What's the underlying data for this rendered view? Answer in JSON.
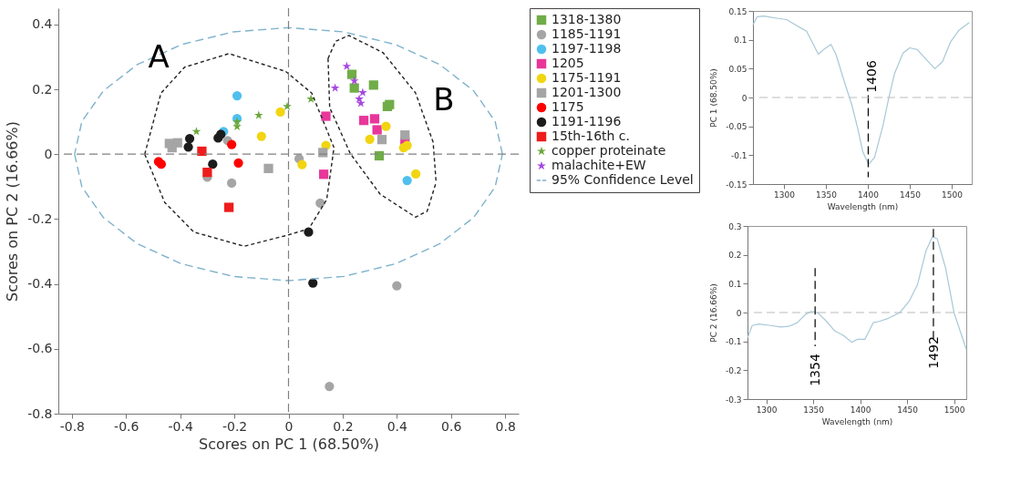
{
  "chart_data": [
    {
      "type": "scatter",
      "xlabel": "Scores on PC 1 (68.50%)",
      "ylabel": "Scores on PC 2 (16.66%)",
      "xlim": [
        -0.85,
        0.85
      ],
      "xticks": [
        -0.8,
        -0.6,
        -0.4,
        -0.2,
        0,
        0.2,
        0.4,
        0.6,
        0.8
      ],
      "ylim": [
        -0.8,
        0.45
      ],
      "yticks": [
        -0.8,
        -0.6,
        -0.4,
        -0.2,
        0,
        0.2,
        0.4
      ],
      "grid": false,
      "legend": "right",
      "series": [
        {
          "name": "1318-1380",
          "color": "#70ad47",
          "marker": "square",
          "x": [
            0.234,
            0.243,
            0.314,
            0.365,
            0.373,
            0.335
          ],
          "values": [
            0.246,
            0.204,
            0.213,
            0.147,
            0.153,
            -0.005
          ]
        },
        {
          "name": "1185-1191",
          "color": "#a5a5a5",
          "marker": "circle",
          "x": [
            -0.3,
            -0.21,
            -0.225,
            0.039,
            0.117,
            0.4,
            0.151
          ],
          "values": [
            -0.071,
            -0.089,
            0.042,
            -0.014,
            -0.151,
            -0.406,
            -0.716
          ]
        },
        {
          "name": "1197-1198",
          "color": "#4fc0ee",
          "marker": "circle",
          "x": [
            -0.19,
            -0.19,
            -0.24,
            0.438
          ],
          "values": [
            0.18,
            0.11,
            0.07,
            -0.081
          ]
        },
        {
          "name": "1205",
          "color": "#e8369a",
          "marker": "square",
          "x": [
            0.138,
            0.13,
            0.278,
            0.318,
            0.327,
            0.43
          ],
          "values": [
            0.117,
            -0.062,
            0.104,
            0.109,
            0.075,
            0.037
          ]
        },
        {
          "name": "1175-1191",
          "color": "#f2d511",
          "marker": "circle",
          "x": [
            -0.03,
            -0.1,
            0.138,
            0.05,
            0.36,
            0.3,
            0.425,
            0.438,
            0.47
          ],
          "values": [
            0.13,
            0.055,
            0.027,
            -0.032,
            0.086,
            0.046,
            0.02,
            0.027,
            -0.061
          ]
        },
        {
          "name": "1201-1300",
          "color": "#a5a5a5",
          "marker": "square",
          "x": [
            -0.44,
            -0.41,
            -0.43,
            -0.074,
            0.127,
            0.345,
            0.43
          ],
          "values": [
            0.033,
            0.035,
            0.02,
            -0.044,
            0.005,
            0.045,
            0.059
          ]
        },
        {
          "name": "1175",
          "color": "#ff0000",
          "marker": "circle",
          "x": [
            -0.48,
            -0.47,
            -0.21,
            -0.185
          ],
          "values": [
            -0.023,
            -0.031,
            0.03,
            -0.027
          ]
        },
        {
          "name": "1191-1196",
          "color": "#1c1c1c",
          "marker": "circle",
          "x": [
            -0.365,
            -0.37,
            -0.26,
            -0.25,
            -0.28,
            0.074,
            0.09
          ],
          "values": [
            0.048,
            0.022,
            0.05,
            0.061,
            -0.031,
            -0.24,
            -0.397
          ]
        },
        {
          "name": "15th-16th c.",
          "color": "#ee1c1c",
          "marker": "square",
          "x": [
            -0.32,
            -0.3,
            -0.22
          ],
          "values": [
            0.009,
            -0.056,
            -0.164
          ]
        },
        {
          "name": "copper proteinate",
          "color": "#6aa83c",
          "marker": "star",
          "x": [
            -0.34,
            -0.19,
            -0.19,
            -0.11,
            -0.005,
            0.083
          ],
          "values": [
            0.07,
            0.1,
            0.085,
            0.12,
            0.147,
            0.17
          ]
        },
        {
          "name": "malachite+EW",
          "color": "#a648e0",
          "marker": "star",
          "x": [
            0.215,
            0.243,
            0.172,
            0.274,
            0.261,
            0.267
          ],
          "values": [
            0.271,
            0.226,
            0.204,
            0.19,
            0.17,
            0.157
          ]
        },
        {
          "name": "95% Confidence Level",
          "type": "line",
          "color": "#7fb2cc",
          "line_style": "dashed",
          "x": [
            0.79,
            0.763,
            0.684,
            0.559,
            0.395,
            0.204,
            0,
            -0.204,
            -0.395,
            -0.559,
            -0.684,
            -0.763,
            -0.79,
            null,
            -0.79,
            -0.763,
            -0.684,
            -0.559,
            -0.395,
            -0.204,
            0,
            0.204,
            0.395,
            0.559,
            0.684,
            0.763,
            0.79
          ],
          "values": [
            0,
            0.101,
            0.195,
            0.276,
            0.338,
            0.377,
            0.39,
            0.377,
            0.338,
            0.276,
            0.195,
            0.101,
            0,
            null,
            0,
            -0.101,
            -0.195,
            -0.276,
            -0.338,
            -0.377,
            -0.39,
            -0.377,
            -0.338,
            -0.276,
            -0.195,
            -0.101,
            0
          ]
        },
        {
          "type": "line",
          "color": "#222222",
          "line_style": "dotted",
          "x": [
            -0.531,
            -0.471,
            -0.384,
            -0.22,
            -0.01,
            0.086,
            0.168,
            null,
            -0.531,
            -0.457,
            -0.35,
            -0.163,
            -0.005,
            0.075,
            0.141,
            0.168
          ],
          "values": [
            0,
            0.188,
            0.268,
            0.31,
            0.255,
            0.188,
            0.02,
            null,
            0,
            -0.149,
            -0.24,
            -0.284,
            -0.25,
            -0.23,
            -0.14,
            0.02
          ]
        },
        {
          "type": "line",
          "color": "#222222",
          "line_style": "dotted",
          "x": [
            0.146,
            0.174,
            0.223,
            0.349,
            0.469,
            0.534,
            0.545,
            null,
            0.146,
            0.152,
            0.228,
            0.338,
            0.469,
            0.512,
            0.545
          ],
          "values": [
            0.295,
            0.348,
            0.366,
            0.313,
            0.189,
            0.037,
            -0.087,
            null,
            0.295,
            0.144,
            0.002,
            -0.123,
            -0.194,
            -0.176,
            -0.087
          ]
        }
      ],
      "ref_lines": [
        {
          "axis": "x",
          "value": 0,
          "color": "#808080",
          "line_style": "dashed"
        },
        {
          "axis": "y",
          "value": 0,
          "color": "#808080",
          "line_style": "dashed"
        }
      ],
      "annotations": [
        "A",
        "B"
      ]
    },
    {
      "type": "line",
      "xlabel": "Wavelength (nm)",
      "ylabel": "PC 1 (68.50%)",
      "xlim": [
        1263,
        1524
      ],
      "xticks": [
        1300,
        1350,
        1400,
        1450,
        1500
      ],
      "ylim": [
        -0.15,
        0.15
      ],
      "yticks": [
        -0.15,
        -0.1,
        -0.05,
        0,
        0.05,
        0.1,
        0.15
      ],
      "grid": false,
      "series": [
        {
          "color": "#a8c8d8",
          "x": [
            1263,
            1268,
            1276,
            1293,
            1303,
            1317,
            1327,
            1335,
            1341,
            1349,
            1356,
            1362,
            1371,
            1381,
            1388,
            1394,
            1401,
            1408,
            1418,
            1425,
            1432,
            1442,
            1450,
            1459,
            1469,
            1480,
            1489,
            1499,
            1509,
            1521
          ],
          "values": [
            0.126,
            0.14,
            0.141,
            0.137,
            0.135,
            0.123,
            0.115,
            0.092,
            0.075,
            0.085,
            0.092,
            0.075,
            0.032,
            -0.013,
            -0.054,
            -0.094,
            -0.116,
            -0.104,
            -0.049,
            -0.001,
            0.042,
            0.077,
            0.086,
            0.083,
            0.067,
            0.05,
            0.062,
            0.097,
            0.117,
            0.13
          ]
        },
        {
          "color": "#000000",
          "line_style": "dashed",
          "x": [
            1400.5,
            1400.5
          ],
          "values": [
            0.004,
            -0.138
          ]
        }
      ],
      "ref_lines": [
        {
          "axis": "y",
          "value": 0,
          "color": "#bbbbbb",
          "line_style": "dashed"
        }
      ],
      "annotations": [
        "1406"
      ]
    },
    {
      "type": "line",
      "xlabel": "Wavelength (nm)",
      "ylabel": "PC 2 (16.66%)",
      "xlim": [
        1280,
        1513
      ],
      "xticks": [
        1300,
        1350,
        1400,
        1450,
        1500
      ],
      "ylim": [
        -0.3,
        0.3
      ],
      "yticks": [
        -0.3,
        -0.2,
        -0.1,
        0,
        0.1,
        0.2,
        0.3
      ],
      "grid": false,
      "series": [
        {
          "color": "#a8c8d8",
          "x": [
            1280,
            1285,
            1292,
            1305,
            1315,
            1324,
            1333,
            1342,
            1348,
            1355,
            1364,
            1373,
            1382,
            1391,
            1397,
            1405,
            1414,
            1421,
            1430,
            1442,
            1452,
            1461,
            1470,
            1477,
            1482,
            1491,
            1500,
            1508,
            1513
          ],
          "values": [
            -0.088,
            -0.045,
            -0.04,
            -0.045,
            -0.05,
            -0.048,
            -0.035,
            -0.006,
            0.004,
            -0.001,
            -0.03,
            -0.064,
            -0.079,
            -0.103,
            -0.093,
            -0.093,
            -0.035,
            -0.03,
            -0.02,
            -0.001,
            0.038,
            0.096,
            0.213,
            0.263,
            0.256,
            0.154,
            -0.001,
            -0.079,
            -0.127
          ]
        },
        {
          "color": "#000000",
          "line_style": "dashed",
          "x": [
            1352,
            1352
          ],
          "values": [
            0.154,
            -0.117
          ]
        },
        {
          "color": "#000000",
          "line_style": "dashed",
          "x": [
            1478,
            1478
          ],
          "values": [
            0.29,
            -0.098
          ]
        }
      ],
      "ref_lines": [
        {
          "axis": "y",
          "value": 0,
          "color": "#bbbbbb",
          "line_style": "dashed"
        }
      ],
      "annotations": [
        "1354",
        "1492"
      ]
    }
  ]
}
